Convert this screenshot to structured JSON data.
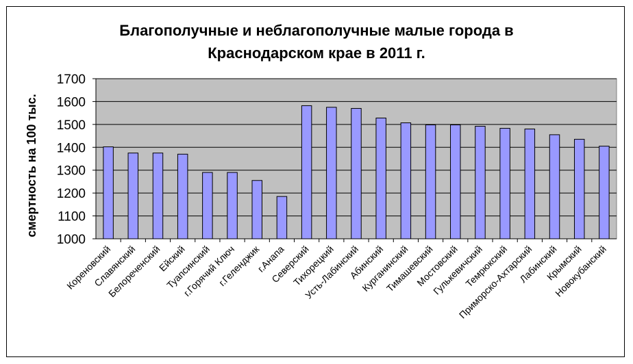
{
  "chart_data": {
    "type": "bar",
    "title_lines": [
      "Благополучные и неблагополучные малые города в",
      "Краснодарском крае в 2011 г."
    ],
    "xlabel": "",
    "ylabel": "смертность на 100 тыс.",
    "ylim": [
      1000,
      1700
    ],
    "yticks": [
      "1000",
      "1100",
      "1200",
      "1300",
      "1400",
      "1500",
      "1600",
      "1700"
    ],
    "grid": true,
    "legend": "none",
    "categories": [
      "Кореновский",
      "Славянский",
      "Белореченский",
      "Ейский",
      "Туапсинский",
      "г.Горячий Ключ",
      "г.Геленджик",
      "г.Анапа",
      "Северский",
      "Тихорецкий",
      "Усть-Лабинский",
      "Абинский",
      "Курганинский",
      "Тимашевский",
      "Мостовский",
      "Гулькевичский",
      "Темрюкский",
      "Приморско-Ахтарский",
      "Лабинский",
      "Крымский",
      "Новокубанский"
    ],
    "values": [
      1402,
      1375,
      1375,
      1370,
      1290,
      1290,
      1255,
      1185,
      1582,
      1575,
      1570,
      1528,
      1507,
      1498,
      1498,
      1492,
      1483,
      1480,
      1455,
      1435,
      1405
    ],
    "colors": {
      "bar_fill": "#9999ff",
      "bar_stroke": "#000000",
      "plot_background": "#c0c0c0",
      "gridline": "#000000"
    }
  }
}
